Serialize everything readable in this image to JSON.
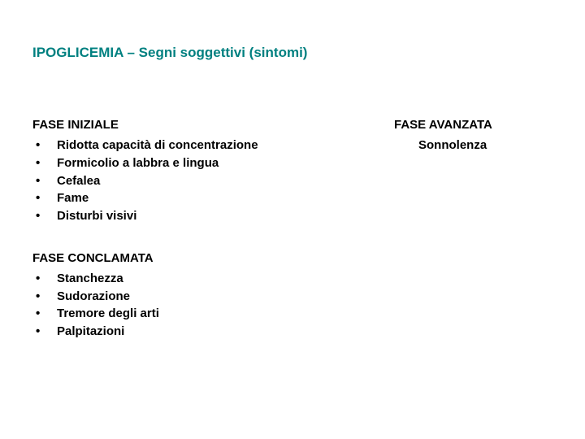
{
  "title_text": "IPOGLICEMIA – Segni soggettivi (sintomi)",
  "title_color": "#008080",
  "text_color": "#000000",
  "bg_color": "#ffffff",
  "left_sections": [
    {
      "heading": "FASE INIZIALE",
      "items": [
        "Ridotta capacità di concentrazione",
        "Formicolio a labbra e lingua",
        "Cefalea",
        "Fame",
        "Disturbi visivi"
      ]
    },
    {
      "heading": "FASE CONCLAMATA",
      "items": [
        "Stanchezza",
        "Sudorazione",
        "Tremore degli arti",
        "Palpitazioni"
      ]
    }
  ],
  "right_section": {
    "heading": "FASE AVANZATA",
    "items": [
      "Sonnolenza"
    ]
  }
}
